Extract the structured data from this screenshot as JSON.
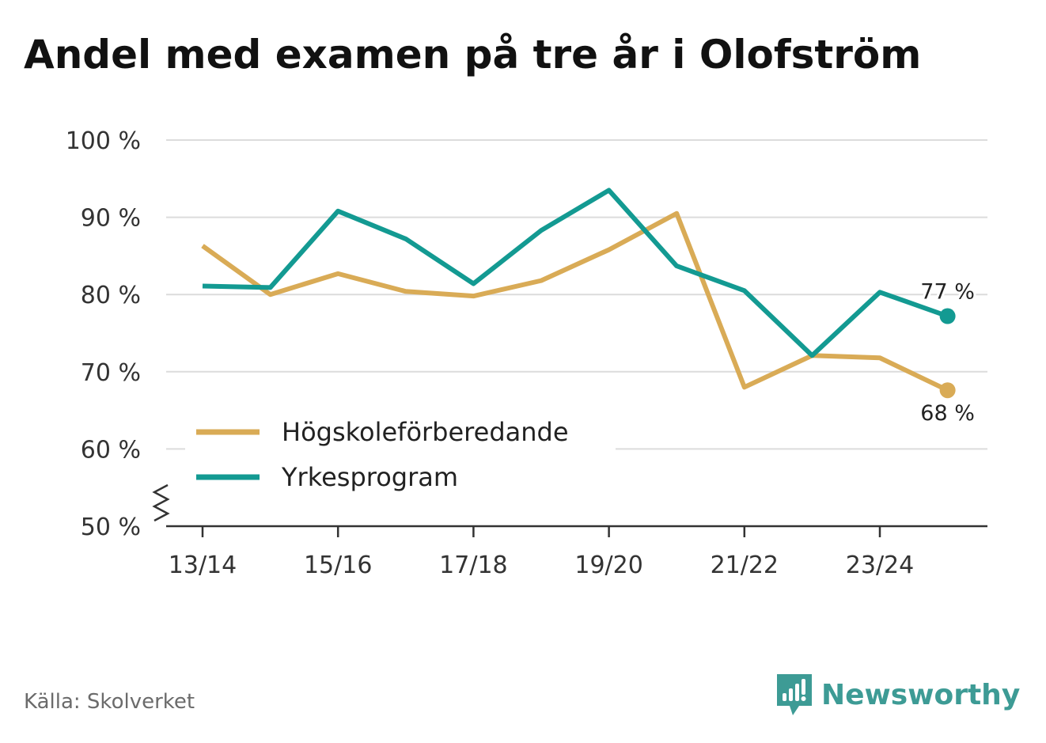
{
  "title": "Andel med examen på tre år i Olofström",
  "source": "Källa: Skolverket",
  "brand": {
    "name": "Newsworthy",
    "icon": "newsworthy-logo-icon"
  },
  "colors": {
    "hogskole": "#d9ab56",
    "yrkes": "#139a92",
    "grid": "#dcdcdc",
    "axis": "#333333",
    "text": "#333333"
  },
  "chart_data": {
    "type": "line",
    "title": "Andel med examen på tre år i Olofström",
    "x": [
      "13/14",
      "14/15",
      "15/16",
      "16/17",
      "17/18",
      "18/19",
      "19/20",
      "20/21",
      "21/22",
      "22/23",
      "23/24",
      "24/25"
    ],
    "x_tick_labels": [
      "13/14",
      "15/16",
      "17/18",
      "19/20",
      "21/22",
      "23/24"
    ],
    "ylim": [
      50,
      100
    ],
    "y_ticks": [
      50,
      60,
      70,
      80,
      90,
      100
    ],
    "y_tick_labels": [
      "50 %",
      "60 %",
      "70 %",
      "80 %",
      "90 %",
      "100 %"
    ],
    "axis_break": true,
    "grid": true,
    "legend_position": "bottom-left",
    "series": [
      {
        "name": "Högskoleförberedande",
        "color": "#d9ab56",
        "values": [
          86.3,
          80.0,
          82.7,
          80.4,
          79.8,
          81.8,
          85.8,
          90.5,
          68.0,
          72.1,
          71.8,
          67.6
        ],
        "end_label": "68 %"
      },
      {
        "name": "Yrkesprogram",
        "color": "#139a92",
        "values": [
          81.1,
          80.9,
          90.8,
          87.2,
          81.4,
          88.3,
          93.5,
          83.7,
          80.5,
          72.1,
          80.3,
          77.2
        ],
        "end_label": "77 %"
      }
    ]
  }
}
